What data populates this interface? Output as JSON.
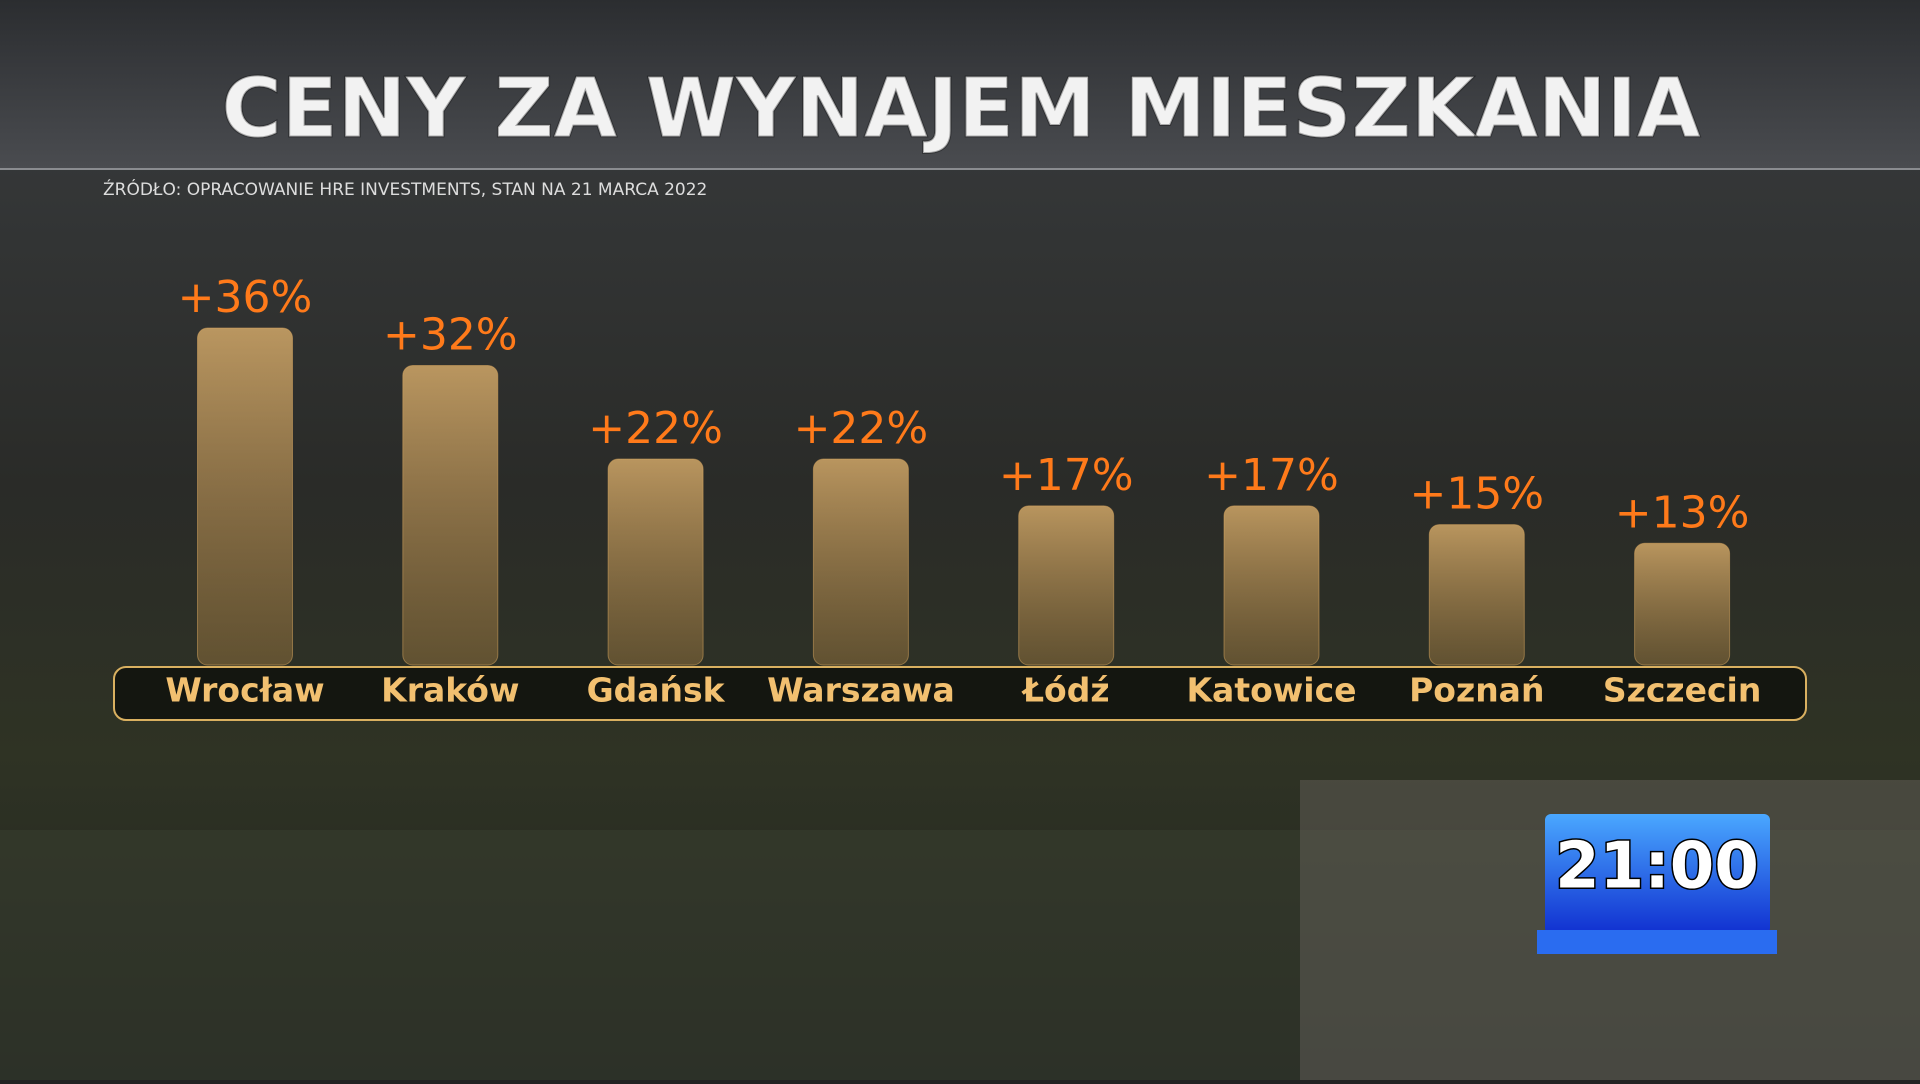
{
  "chart_data": {
    "type": "bar",
    "title": "CENY ZA WYNAJEM MIESZKANIA",
    "subtitle": "ŹRÓDŁO: OPRACOWANIE HRE INVESTMENTS, STAN NA 21 MARCA 2022",
    "categories": [
      "Wrocław",
      "Kraków",
      "Gdańsk",
      "Warszawa",
      "Łódź",
      "Katowice",
      "Poznań",
      "Szczecin"
    ],
    "values": [
      36,
      32,
      22,
      22,
      17,
      17,
      15,
      13
    ],
    "value_labels": [
      "+36%",
      "+32%",
      "+22%",
      "+22%",
      "+17%",
      "+17%",
      "+15%",
      "+13%"
    ],
    "color": "#d9a860"
  },
  "badge": "21:00"
}
